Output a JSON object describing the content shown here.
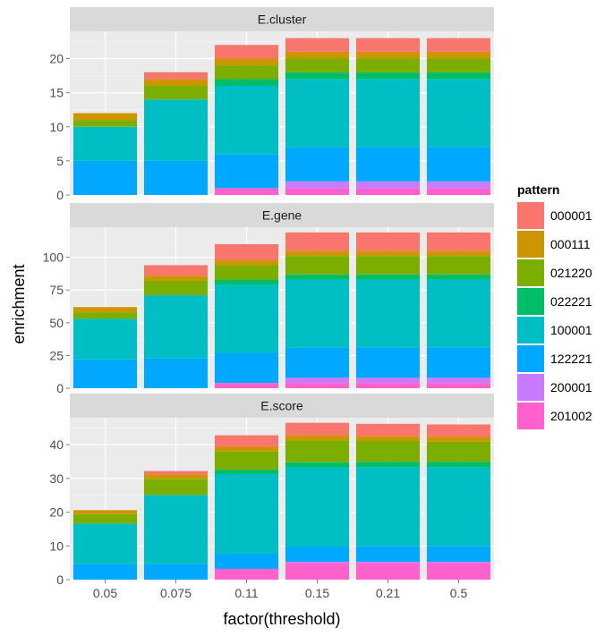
{
  "chart_data": {
    "type": "bar",
    "stacked": true,
    "xlabel": "factor(threshold)",
    "ylabel": "enrichment",
    "categories": [
      "0.05",
      "0.075",
      "0.11",
      "0.15",
      "0.21",
      "0.5"
    ],
    "legend": {
      "title": "pattern",
      "position": "right",
      "entries": [
        {
          "name": "000001",
          "color": "#F8766D"
        },
        {
          "name": "000111",
          "color": "#CD9600"
        },
        {
          "name": "021220",
          "color": "#7CAE00"
        },
        {
          "name": "022221",
          "color": "#00BE67"
        },
        {
          "name": "100001",
          "color": "#00BFC4"
        },
        {
          "name": "122221",
          "color": "#00A9FF"
        },
        {
          "name": "200001",
          "color": "#C77CFF"
        },
        {
          "name": "201002",
          "color": "#FF61CC"
        }
      ]
    },
    "stack_order": [
      "201002",
      "200001",
      "122221",
      "100001",
      "022221",
      "021220",
      "000111",
      "000001"
    ],
    "panels": [
      {
        "title": "E.cluster",
        "ylim": [
          0,
          24
        ],
        "yticks": [
          0,
          5,
          10,
          15,
          20
        ],
        "series": [
          {
            "name": "201002",
            "values": [
              0,
              0,
              1,
              1,
              1,
              1
            ]
          },
          {
            "name": "200001",
            "values": [
              0,
              0,
              0,
              1,
              1,
              1
            ]
          },
          {
            "name": "122221",
            "values": [
              5,
              5,
              5,
              5,
              5,
              5
            ]
          },
          {
            "name": "100001",
            "values": [
              5,
              9,
              10,
              10,
              10,
              10
            ]
          },
          {
            "name": "022221",
            "values": [
              0,
              0,
              1,
              1,
              1,
              1
            ]
          },
          {
            "name": "021220",
            "values": [
              1,
              2,
              2,
              2,
              2,
              2
            ]
          },
          {
            "name": "000111",
            "values": [
              1,
              1,
              1,
              1,
              1,
              1
            ]
          },
          {
            "name": "000001",
            "values": [
              0,
              1,
              2,
              2,
              2,
              2
            ]
          }
        ]
      },
      {
        "title": "E.gene",
        "ylim": [
          0,
          123
        ],
        "yticks": [
          0,
          25,
          50,
          75,
          100
        ],
        "series": [
          {
            "name": "201002",
            "values": [
              0,
              0,
              4,
              4,
              4,
              4
            ]
          },
          {
            "name": "200001",
            "values": [
              0,
              0,
              0,
              4,
              4,
              4
            ]
          },
          {
            "name": "122221",
            "values": [
              22,
              23,
              23,
              23,
              23,
              23
            ]
          },
          {
            "name": "100001",
            "values": [
              31,
              48,
              52,
              52,
              52,
              52
            ]
          },
          {
            "name": "022221",
            "values": [
              0,
              0,
              4,
              4,
              4,
              4
            ]
          },
          {
            "name": "021220",
            "values": [
              5,
              11,
              11,
              14,
              14,
              14
            ]
          },
          {
            "name": "000111",
            "values": [
              4,
              4,
              4,
              4,
              4,
              4
            ]
          },
          {
            "name": "000001",
            "values": [
              0,
              8,
              12,
              14,
              14,
              14
            ]
          }
        ]
      },
      {
        "title": "E.score",
        "ylim": [
          0,
          48
        ],
        "yticks": [
          0,
          10,
          20,
          30,
          40
        ],
        "series": [
          {
            "name": "201002",
            "values": [
              0,
              0,
              3.2,
              5,
              5,
              5
            ]
          },
          {
            "name": "200001",
            "values": [
              0,
              0,
              0,
              0.3,
              0.3,
              0.3
            ]
          },
          {
            "name": "122221",
            "values": [
              4.6,
              4.6,
              4.6,
              4.5,
              4.6,
              4.6
            ]
          },
          {
            "name": "100001",
            "values": [
              12,
              20.5,
              23.5,
              23.5,
              23.5,
              23.5
            ]
          },
          {
            "name": "022221",
            "values": [
              0,
              0,
              1.3,
              1.5,
              1.5,
              1.5
            ]
          },
          {
            "name": "021220",
            "values": [
              2.8,
              4.8,
              5.4,
              6.5,
              6.2,
              6
            ]
          },
          {
            "name": "000111",
            "values": [
              1.2,
              1.3,
              1.4,
              1.5,
              1.5,
              1.5
            ]
          },
          {
            "name": "000001",
            "values": [
              0,
              1,
              3.4,
              3.7,
              3.6,
              3.6
            ]
          }
        ]
      }
    ]
  }
}
